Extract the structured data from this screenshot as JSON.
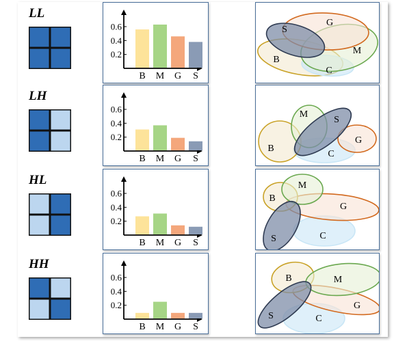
{
  "rows": [
    {
      "label": "LL",
      "cells": [
        "dark",
        "dark",
        "dark",
        "dark"
      ],
      "bars": [
        0.56,
        0.63,
        0.46,
        0.38
      ],
      "ellipses": [
        {
          "key": "B",
          "label": "B",
          "cx": 65,
          "cy": 80,
          "rx": 63,
          "ry": 25,
          "rot": 10,
          "fill": "#f3ead0",
          "stroke": "#c9a227",
          "lx": 30,
          "ly": 87
        },
        {
          "key": "C",
          "label": "C",
          "cx": 105,
          "cy": 92,
          "rx": 38,
          "ry": 15,
          "rot": 5,
          "fill": "#c9e6f6",
          "stroke": "#c9e6f6",
          "lx": 107,
          "ly": 103
        },
        {
          "key": "M",
          "label": "M",
          "cx": 122,
          "cy": 66,
          "rx": 57,
          "ry": 33,
          "rot": -12,
          "fill": "#e6f0d6",
          "stroke": "#6aa84f",
          "lx": 148,
          "ly": 74
        },
        {
          "key": "G",
          "label": "G",
          "cx": 102,
          "cy": 42,
          "rx": 63,
          "ry": 27,
          "rot": 2,
          "fill": "#f9e3d6",
          "stroke": "#d2691e",
          "lx": 108,
          "ly": 33
        },
        {
          "key": "S",
          "label": "S",
          "cx": 58,
          "cy": 55,
          "rx": 44,
          "ry": 22,
          "rot": 18,
          "fill": "#7f8ea8",
          "stroke": "#2f3b52",
          "lx": 42,
          "ly": 43
        }
      ]
    },
    {
      "label": "LH",
      "cells": [
        "dark",
        "light",
        "dark",
        "light"
      ],
      "bars": [
        0.31,
        0.37,
        0.19,
        0.14
      ],
      "ellipses": [
        {
          "key": "C",
          "label": "C",
          "cx": 100,
          "cy": 95,
          "rx": 45,
          "ry": 18,
          "rot": 0,
          "fill": "#c9e6f6",
          "stroke": "#c9e6f6",
          "lx": 110,
          "ly": 104
        },
        {
          "key": "B",
          "label": "B",
          "cx": 35,
          "cy": 82,
          "rx": 31,
          "ry": 30,
          "rot": 0,
          "fill": "#f3ead0",
          "stroke": "#c9a227",
          "lx": 22,
          "ly": 96
        },
        {
          "key": "G",
          "label": "G",
          "cx": 148,
          "cy": 78,
          "rx": 28,
          "ry": 20,
          "rot": 0,
          "fill": "#f9e3d6",
          "stroke": "#d2691e",
          "lx": 150,
          "ly": 84
        },
        {
          "key": "M",
          "label": "M",
          "cx": 78,
          "cy": 60,
          "rx": 26,
          "ry": 31,
          "rot": 0,
          "fill": "#e6f0d6",
          "stroke": "#6aa84f",
          "lx": 70,
          "ly": 46
        },
        {
          "key": "S",
          "label": "S",
          "cx": 98,
          "cy": 68,
          "rx": 50,
          "ry": 20,
          "rot": -38,
          "fill": "#7f8ea8",
          "stroke": "#2f3b52",
          "lx": 118,
          "ly": 54
        }
      ]
    },
    {
      "label": "HL",
      "cells": [
        "light",
        "dark",
        "light",
        "dark"
      ],
      "bars": [
        0.27,
        0.31,
        0.14,
        0.12
      ],
      "ellipses": [
        {
          "key": "C",
          "label": "C",
          "cx": 100,
          "cy": 90,
          "rx": 45,
          "ry": 22,
          "rot": 0,
          "fill": "#c9e6f6",
          "stroke": "#c9e6f6",
          "lx": 98,
          "ly": 101
        },
        {
          "key": "G",
          "label": "G",
          "cx": 112,
          "cy": 55,
          "rx": 68,
          "ry": 19,
          "rot": 4,
          "fill": "#f9e3d6",
          "stroke": "#d2691e",
          "lx": 128,
          "ly": 58
        },
        {
          "key": "B",
          "label": "B",
          "cx": 36,
          "cy": 40,
          "rx": 25,
          "ry": 21,
          "rot": 0,
          "fill": "#f3ead0",
          "stroke": "#c9a227",
          "lx": 24,
          "ly": 46
        },
        {
          "key": "M",
          "label": "M",
          "cx": 68,
          "cy": 29,
          "rx": 30,
          "ry": 22,
          "rot": 0,
          "fill": "#e6f0d6",
          "stroke": "#6aa84f",
          "lx": 68,
          "ly": 27
        },
        {
          "key": "S",
          "label": "S",
          "cx": 38,
          "cy": 83,
          "rx": 40,
          "ry": 21,
          "rot": -60,
          "fill": "#7f8ea8",
          "stroke": "#2f3b52",
          "lx": 26,
          "ly": 105
        }
      ]
    },
    {
      "label": "HH",
      "cells": [
        "dark",
        "light",
        "light",
        "dark"
      ],
      "bars": [
        0.09,
        0.25,
        0.09,
        0.09
      ],
      "ellipses": [
        {
          "key": "C",
          "label": "C",
          "cx": 85,
          "cy": 95,
          "rx": 45,
          "ry": 22,
          "rot": 0,
          "fill": "#c9e6f6",
          "stroke": "#c9e6f6",
          "lx": 92,
          "ly": 99
        },
        {
          "key": "G",
          "label": "G",
          "cx": 118,
          "cy": 68,
          "rx": 65,
          "ry": 17,
          "rot": 12,
          "fill": "#f9e3d6",
          "stroke": "#d2691e",
          "lx": 148,
          "ly": 80
        },
        {
          "key": "B",
          "label": "B",
          "cx": 54,
          "cy": 35,
          "rx": 31,
          "ry": 22,
          "rot": -10,
          "fill": "#f3ead0",
          "stroke": "#c9a227",
          "lx": 48,
          "ly": 40
        },
        {
          "key": "M",
          "label": "M",
          "cx": 128,
          "cy": 38,
          "rx": 55,
          "ry": 23,
          "rot": -5,
          "fill": "#e6f0d6",
          "stroke": "#6aa84f",
          "lx": 120,
          "ly": 42
        },
        {
          "key": "S",
          "label": "S",
          "cx": 42,
          "cy": 75,
          "rx": 48,
          "ry": 18,
          "rot": -40,
          "fill": "#7f8ea8",
          "stroke": "#2f3b52",
          "lx": 22,
          "ly": 95
        }
      ]
    }
  ],
  "chart_data": [
    {
      "type": "bar",
      "categories": [
        "B",
        "M",
        "G",
        "S"
      ],
      "values": [
        0.56,
        0.63,
        0.46,
        0.38
      ],
      "yticks": [
        "0.2",
        "0.4",
        "0.6"
      ],
      "ylim": [
        0,
        0.75
      ]
    },
    {
      "type": "bar",
      "categories": [
        "B",
        "M",
        "G",
        "S"
      ],
      "values": [
        0.31,
        0.37,
        0.19,
        0.14
      ],
      "yticks": [
        "0.2",
        "0.4",
        "0.6"
      ],
      "ylim": [
        0,
        0.75
      ]
    },
    {
      "type": "bar",
      "categories": [
        "B",
        "M",
        "G",
        "S"
      ],
      "values": [
        0.27,
        0.31,
        0.14,
        0.12
      ],
      "yticks": [
        "0.2",
        "0.4",
        "0.6"
      ],
      "ylim": [
        0,
        0.75
      ]
    },
    {
      "type": "bar",
      "categories": [
        "B",
        "M",
        "G",
        "S"
      ],
      "values": [
        0.09,
        0.25,
        0.09,
        0.09
      ],
      "yticks": [
        "0.2",
        "0.4",
        "0.6"
      ],
      "ylim": [
        0,
        0.75
      ]
    }
  ],
  "colors": {
    "dark_cell": "#2f6db5",
    "light_cell": "#bcd6ef",
    "bars": [
      "#fde39a",
      "#a6d586",
      "#f4a77c",
      "#8a9bb5"
    ]
  }
}
